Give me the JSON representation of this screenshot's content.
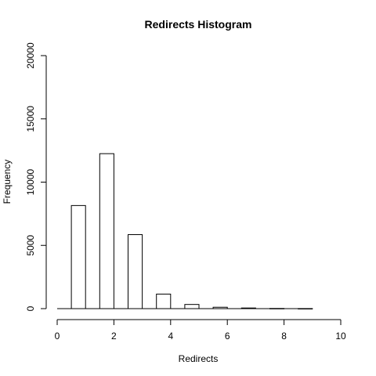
{
  "chart_data": {
    "type": "bar",
    "title": "Redirects Histogram",
    "xlabel": "Redirects",
    "ylabel": "Frequency",
    "xlim": [
      0,
      10
    ],
    "ylim": [
      0,
      20000
    ],
    "x_ticks": [
      0,
      2,
      4,
      6,
      8,
      10
    ],
    "y_ticks": [
      0,
      5000,
      10000,
      15000,
      20000
    ],
    "bins": [
      {
        "start": 0.5,
        "end": 1.0,
        "value": 8150
      },
      {
        "start": 1.5,
        "end": 2.0,
        "value": 12250
      },
      {
        "start": 2.5,
        "end": 3.0,
        "value": 5850
      },
      {
        "start": 3.5,
        "end": 4.0,
        "value": 1150
      },
      {
        "start": 4.5,
        "end": 5.0,
        "value": 330
      },
      {
        "start": 5.5,
        "end": 6.0,
        "value": 110
      },
      {
        "start": 6.5,
        "end": 7.0,
        "value": 50
      },
      {
        "start": 7.5,
        "end": 8.0,
        "value": 15
      },
      {
        "start": 8.5,
        "end": 9.0,
        "value": 5
      }
    ],
    "baseline": [
      0,
      9
    ],
    "grid": false,
    "legend": "none"
  }
}
